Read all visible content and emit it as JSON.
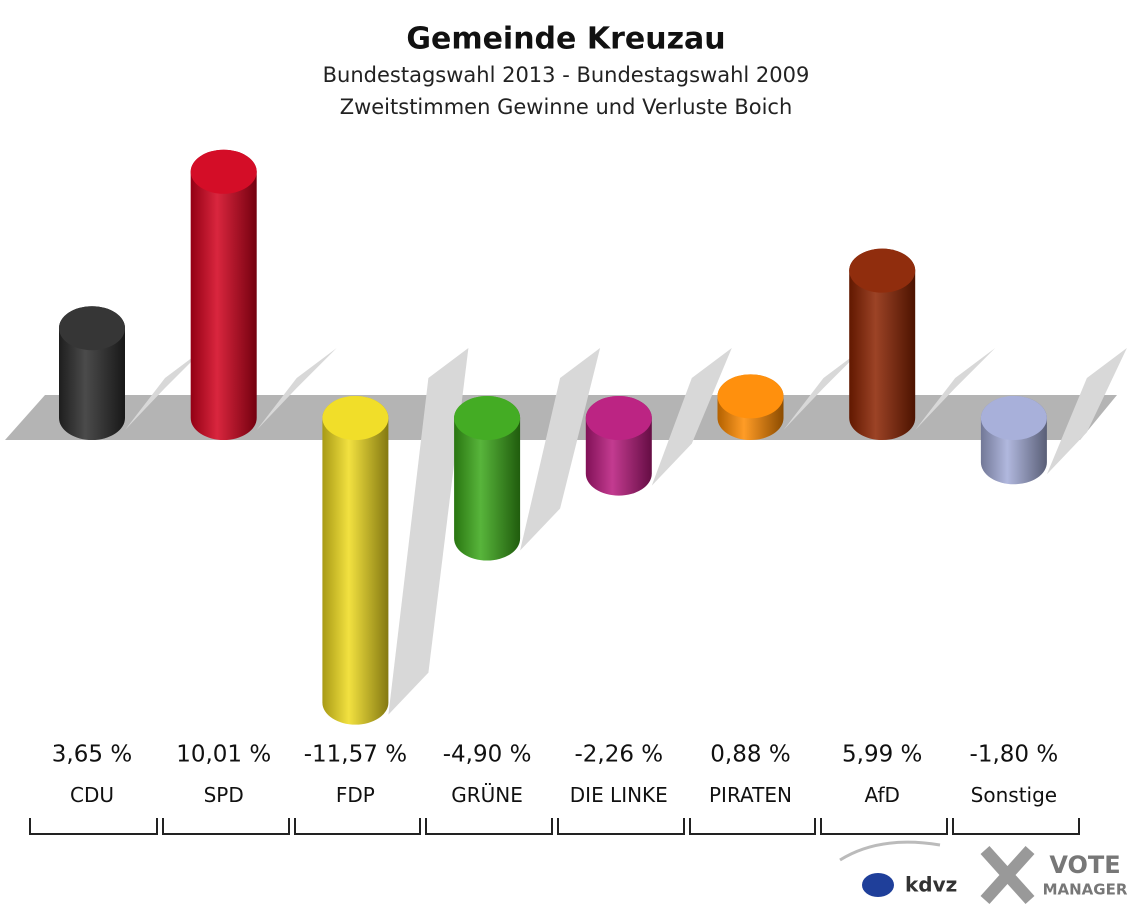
{
  "chart_data": {
    "type": "bar",
    "title": "Gemeinde Kreuzau",
    "subtitle": "Bundestagswahl 2013 - Bundestagswahl 2009",
    "subtitle2": "Zweitstimmen Gewinne und Verluste Boich",
    "categories": [
      "CDU",
      "SPD",
      "FDP",
      "GRÜNE",
      "DIE LINKE",
      "PIRATEN",
      "AfD",
      "Sonstige"
    ],
    "values": [
      3.65,
      10.01,
      -11.57,
      -4.9,
      -2.26,
      0.88,
      5.99,
      -1.8
    ],
    "value_labels": [
      "3,65 %",
      "10,01 %",
      "-11,57 %",
      "-4,90 %",
      "-2,26 %",
      "0,88 %",
      "5,99 %",
      "-1,80 %"
    ],
    "colors": [
      "#2b2b2b",
      "#d2001c",
      "#f0dc1e",
      "#3aa818",
      "#b8187c",
      "#ff8a00",
      "#8a2200",
      "#a3acd8"
    ]
  },
  "logo": {
    "brand": "kdvz",
    "vote": "VOTE",
    "manager": "MANAGER"
  }
}
